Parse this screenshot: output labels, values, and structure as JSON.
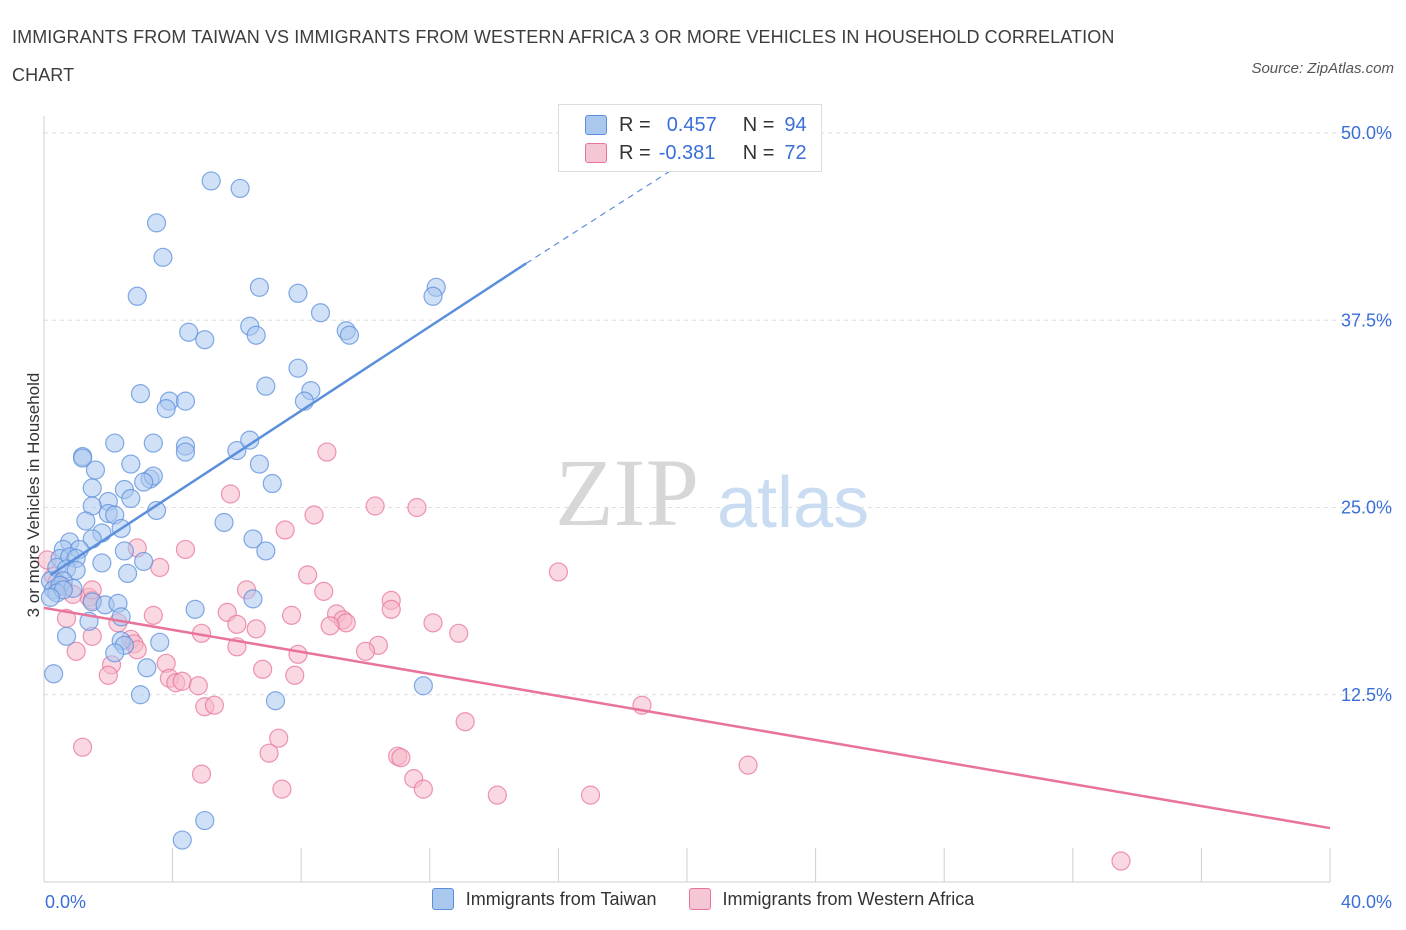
{
  "title": "IMMIGRANTS FROM TAIWAN VS IMMIGRANTS FROM WESTERN AFRICA 3 OR MORE VEHICLES IN HOUSEHOLD CORRELATION CHART",
  "source": "Source: ZipAtlas.com",
  "watermark": {
    "zip": "ZIP",
    "atlas": "atlas"
  },
  "legend_top": [
    {
      "r_label": "R =",
      "r_value": "0.457",
      "n_label": "N =",
      "n_value": "94",
      "color": "#aac7ee"
    },
    {
      "r_label": "R =",
      "r_value": "-0.381",
      "n_label": "N =",
      "n_value": "72",
      "color": "#f5b8c9"
    }
  ],
  "chart_data": {
    "type": "scatter",
    "xlabel": "",
    "ylabel": "3 or more Vehicles in Household",
    "xlim": [
      0,
      40
    ],
    "ylim": [
      0,
      50
    ],
    "x_tick_labels": [
      "0.0%",
      "40.0%"
    ],
    "y_ticks": [
      12.5,
      25.0,
      37.5,
      50.0
    ],
    "y_tick_labels": [
      "12.5%",
      "25.0%",
      "37.5%",
      "50.0%"
    ],
    "grid": true,
    "legend_position": "top-center",
    "series": [
      {
        "name": "Immigrants from Taiwan",
        "color": "#5b8fdc",
        "fill": "#aac7ee",
        "trend": {
          "x": [
            0.2,
            15.0
          ],
          "y": [
            20.5,
            41.3
          ],
          "extended_to": [
            19.5,
            47.5
          ]
        },
        "points": [
          [
            5.2,
            46.8
          ],
          [
            6.1,
            46.3
          ],
          [
            3.5,
            44.0
          ],
          [
            3.7,
            41.7
          ],
          [
            2.9,
            39.1
          ],
          [
            6.7,
            39.7
          ],
          [
            7.9,
            39.3
          ],
          [
            12.2,
            39.7
          ],
          [
            12.1,
            39.1
          ],
          [
            8.6,
            38.0
          ],
          [
            4.5,
            36.7
          ],
          [
            5.0,
            36.2
          ],
          [
            6.4,
            37.1
          ],
          [
            6.6,
            36.5
          ],
          [
            9.4,
            36.8
          ],
          [
            9.5,
            36.5
          ],
          [
            7.9,
            34.3
          ],
          [
            6.9,
            33.1
          ],
          [
            8.3,
            32.8
          ],
          [
            8.1,
            32.1
          ],
          [
            3.0,
            32.6
          ],
          [
            3.9,
            32.1
          ],
          [
            4.4,
            32.1
          ],
          [
            3.8,
            31.6
          ],
          [
            2.2,
            29.3
          ],
          [
            3.4,
            29.3
          ],
          [
            4.4,
            29.1
          ],
          [
            4.4,
            28.7
          ],
          [
            6.0,
            28.8
          ],
          [
            6.4,
            29.5
          ],
          [
            1.2,
            28.4
          ],
          [
            1.2,
            28.3
          ],
          [
            1.6,
            27.5
          ],
          [
            2.7,
            27.9
          ],
          [
            3.3,
            26.9
          ],
          [
            3.4,
            27.1
          ],
          [
            6.7,
            27.9
          ],
          [
            1.5,
            26.3
          ],
          [
            2.5,
            26.2
          ],
          [
            3.1,
            26.7
          ],
          [
            7.1,
            26.6
          ],
          [
            2.0,
            25.4
          ],
          [
            2.7,
            25.6
          ],
          [
            1.5,
            25.1
          ],
          [
            2.0,
            24.6
          ],
          [
            2.2,
            24.5
          ],
          [
            3.5,
            24.8
          ],
          [
            1.3,
            24.1
          ],
          [
            1.8,
            23.3
          ],
          [
            2.4,
            23.6
          ],
          [
            5.6,
            24.0
          ],
          [
            6.5,
            22.9
          ],
          [
            0.8,
            22.7
          ],
          [
            1.5,
            22.9
          ],
          [
            0.6,
            22.2
          ],
          [
            1.1,
            22.2
          ],
          [
            2.5,
            22.1
          ],
          [
            0.5,
            21.6
          ],
          [
            0.8,
            21.7
          ],
          [
            1.0,
            21.6
          ],
          [
            3.1,
            21.4
          ],
          [
            1.8,
            21.3
          ],
          [
            0.4,
            21.0
          ],
          [
            0.7,
            20.9
          ],
          [
            1.0,
            20.8
          ],
          [
            2.6,
            20.6
          ],
          [
            0.2,
            20.1
          ],
          [
            0.6,
            20.1
          ],
          [
            0.3,
            19.5
          ],
          [
            0.5,
            19.8
          ],
          [
            0.9,
            19.6
          ],
          [
            0.4,
            19.3
          ],
          [
            0.6,
            19.5
          ],
          [
            1.5,
            18.7
          ],
          [
            1.9,
            18.5
          ],
          [
            2.3,
            18.6
          ],
          [
            6.5,
            18.9
          ],
          [
            4.7,
            18.2
          ],
          [
            2.4,
            17.7
          ],
          [
            1.4,
            17.4
          ],
          [
            0.7,
            16.4
          ],
          [
            2.4,
            16.1
          ],
          [
            2.5,
            15.8
          ],
          [
            3.6,
            16.0
          ],
          [
            2.2,
            15.3
          ],
          [
            3.2,
            14.3
          ],
          [
            0.3,
            13.9
          ],
          [
            3.0,
            12.5
          ],
          [
            7.2,
            12.1
          ],
          [
            11.8,
            13.1
          ],
          [
            5.0,
            4.1
          ],
          [
            4.3,
            2.8
          ],
          [
            6.9,
            22.1
          ],
          [
            0.2,
            19.0
          ]
        ]
      },
      {
        "name": "Immigrants from Western Africa",
        "color": "#e8739b",
        "fill": "#f5b8c9",
        "trend": {
          "x": [
            0.0,
            40.0
          ],
          "y": [
            18.3,
            3.6
          ]
        },
        "points": [
          [
            8.8,
            28.7
          ],
          [
            5.8,
            25.9
          ],
          [
            10.3,
            25.1
          ],
          [
            11.6,
            25.0
          ],
          [
            8.4,
            24.5
          ],
          [
            7.5,
            23.5
          ],
          [
            2.9,
            22.3
          ],
          [
            4.4,
            22.2
          ],
          [
            3.6,
            21.0
          ],
          [
            8.2,
            20.5
          ],
          [
            16.0,
            20.7
          ],
          [
            0.1,
            21.5
          ],
          [
            0.3,
            20.4
          ],
          [
            0.4,
            20.0
          ],
          [
            0.6,
            19.7
          ],
          [
            1.4,
            19.0
          ],
          [
            1.5,
            18.8
          ],
          [
            0.9,
            19.2
          ],
          [
            6.3,
            19.5
          ],
          [
            8.7,
            19.4
          ],
          [
            10.8,
            18.8
          ],
          [
            10.8,
            18.2
          ],
          [
            0.7,
            17.6
          ],
          [
            3.4,
            17.8
          ],
          [
            5.7,
            18.0
          ],
          [
            7.7,
            17.8
          ],
          [
            9.1,
            17.9
          ],
          [
            9.3,
            17.5
          ],
          [
            9.4,
            17.3
          ],
          [
            12.1,
            17.3
          ],
          [
            2.3,
            17.3
          ],
          [
            6.0,
            17.2
          ],
          [
            6.6,
            16.9
          ],
          [
            8.9,
            17.1
          ],
          [
            4.9,
            16.6
          ],
          [
            12.9,
            16.6
          ],
          [
            1.5,
            16.4
          ],
          [
            2.7,
            16.2
          ],
          [
            2.8,
            15.9
          ],
          [
            2.9,
            15.5
          ],
          [
            6.0,
            15.7
          ],
          [
            10.4,
            15.8
          ],
          [
            10.0,
            15.4
          ],
          [
            7.9,
            15.2
          ],
          [
            1.0,
            15.4
          ],
          [
            2.1,
            14.5
          ],
          [
            3.8,
            14.6
          ],
          [
            6.8,
            14.2
          ],
          [
            7.8,
            13.8
          ],
          [
            2.0,
            13.8
          ],
          [
            3.9,
            13.6
          ],
          [
            4.1,
            13.3
          ],
          [
            4.3,
            13.4
          ],
          [
            4.8,
            13.1
          ],
          [
            5.0,
            11.7
          ],
          [
            5.3,
            11.8
          ],
          [
            13.1,
            10.7
          ],
          [
            18.6,
            11.8
          ],
          [
            7.3,
            9.6
          ],
          [
            7.0,
            8.6
          ],
          [
            11.0,
            8.4
          ],
          [
            11.1,
            8.3
          ],
          [
            21.9,
            7.8
          ],
          [
            1.2,
            9.0
          ],
          [
            4.9,
            7.2
          ],
          [
            11.5,
            6.9
          ],
          [
            11.8,
            6.2
          ],
          [
            7.4,
            6.2
          ],
          [
            14.1,
            5.8
          ],
          [
            17.0,
            5.8
          ],
          [
            33.5,
            1.4
          ],
          [
            1.5,
            19.5
          ]
        ]
      }
    ]
  }
}
